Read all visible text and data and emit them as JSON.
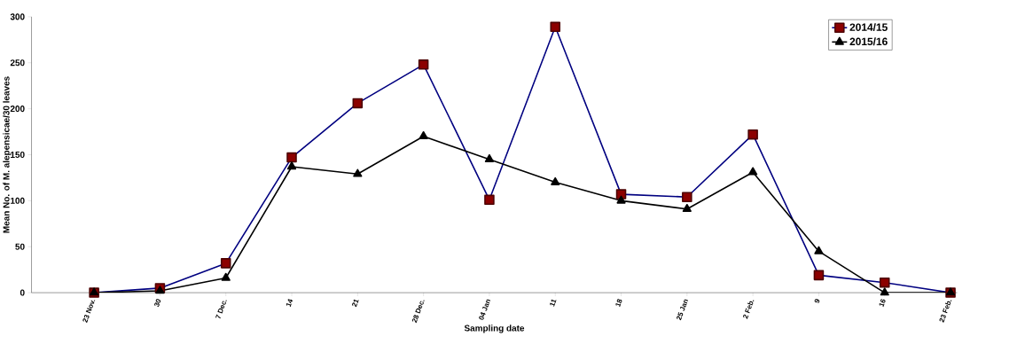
{
  "chart_data": {
    "type": "line",
    "xlabel": "Sampling date",
    "ylabel": "Mean No. of M. alepensicae/30 leaves",
    "categories": [
      "23 Nov.",
      "30",
      "7 Dec.",
      "14",
      "21",
      "28 Dec.",
      "04 Jan",
      "11",
      "18",
      "25 Jan",
      "2 Feb.",
      "9",
      "16",
      "23 Feb."
    ],
    "series": [
      {
        "name": "2014/15",
        "color": "#000080",
        "marker": "square",
        "values": [
          0,
          5,
          32,
          147,
          206,
          248,
          101,
          289,
          107,
          104,
          172,
          19,
          11,
          0
        ]
      },
      {
        "name": "2015/16",
        "color": "#000000",
        "marker": "triangle",
        "values": [
          0,
          2,
          16,
          137,
          129,
          170,
          145,
          120,
          100,
          91,
          131,
          45,
          0,
          0
        ]
      }
    ],
    "ylim": [
      0,
      300
    ],
    "yticks": [
      0,
      50,
      100,
      150,
      200,
      250,
      300
    ],
    "legend": "top right"
  }
}
